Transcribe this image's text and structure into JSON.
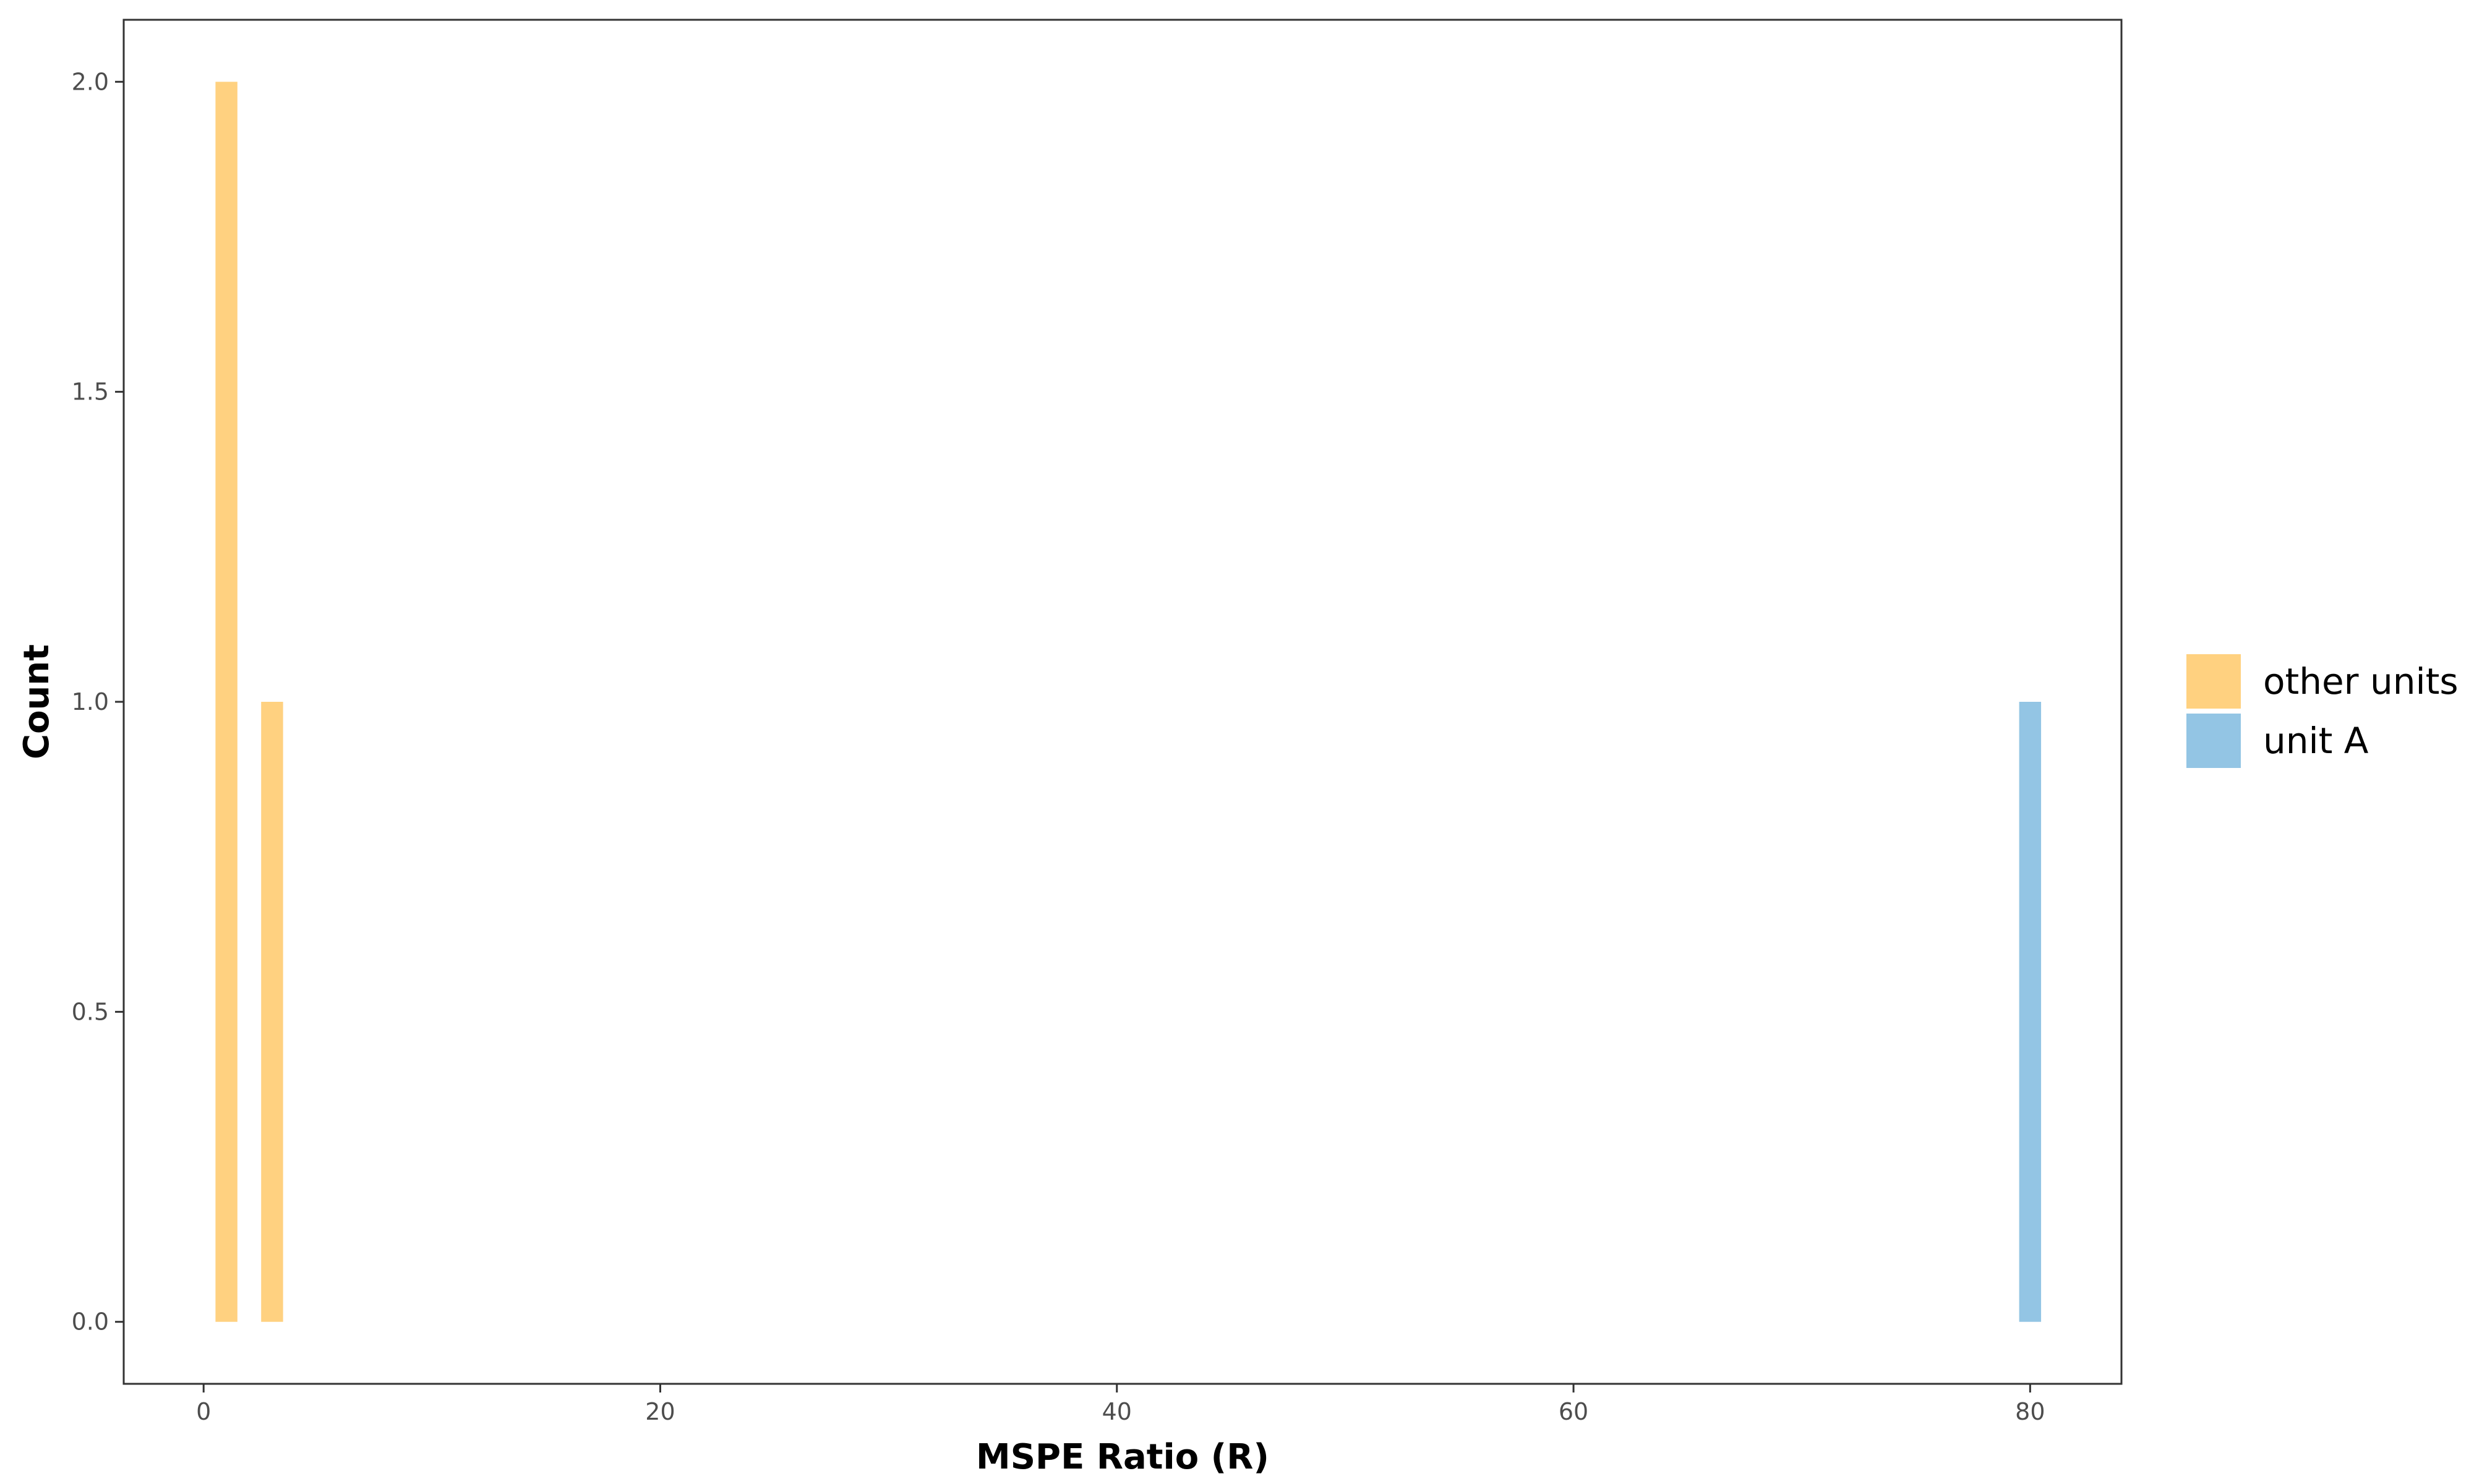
{
  "chart_data": {
    "type": "bar",
    "title": "",
    "xlabel": "MSPE Ratio (R)",
    "ylabel": "Count",
    "xlim": [
      -3.5,
      84
    ],
    "ylim": [
      -0.1,
      2.1
    ],
    "bar_width": 1,
    "x_ticks": [
      0,
      20,
      40,
      60,
      80
    ],
    "x_tick_labels": [
      "0",
      "20",
      "40",
      "60",
      "80"
    ],
    "y_ticks": [
      0,
      0.5,
      1,
      1.5,
      2
    ],
    "y_tick_labels": [
      "0.0",
      "0.5",
      "1.0",
      "1.5",
      "2.0"
    ],
    "grid": false,
    "legend_position": "right",
    "series": [
      {
        "name": "other units",
        "color": "#FFD180",
        "points": [
          {
            "x": 1,
            "y": 2
          },
          {
            "x": 3,
            "y": 1
          }
        ]
      },
      {
        "name": "unit A",
        "color": "#93C5E4",
        "points": [
          {
            "x": 80,
            "y": 1
          }
        ]
      }
    ]
  }
}
